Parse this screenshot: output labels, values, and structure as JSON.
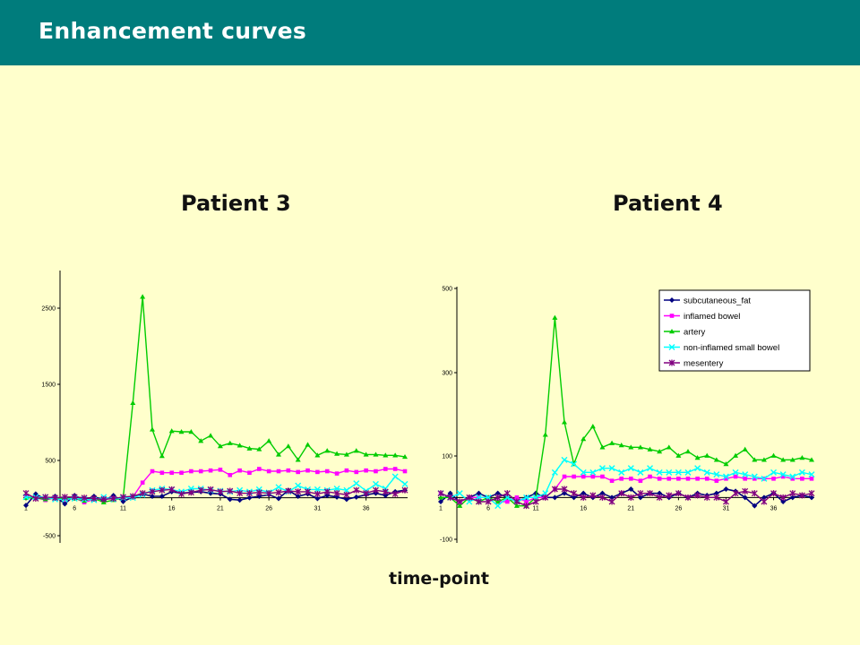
{
  "header": {
    "title": "Enhancement curves"
  },
  "xlabel": "time-point",
  "chart_data": [
    {
      "type": "line",
      "title": "Patient 3",
      "x": [
        1,
        2,
        3,
        4,
        5,
        6,
        7,
        8,
        9,
        10,
        11,
        12,
        13,
        14,
        15,
        16,
        17,
        18,
        19,
        20,
        21,
        22,
        23,
        24,
        25,
        26,
        27,
        28,
        29,
        30,
        31,
        32,
        33,
        34,
        35,
        36,
        37,
        38,
        39,
        40
      ],
      "x_ticks": [
        "1",
        "6",
        "11",
        "16",
        "21",
        "26",
        "31",
        "36"
      ],
      "ylim": [
        -500,
        3000
      ],
      "y_ticks": [
        "-500",
        "500",
        "1500",
        "2500"
      ],
      "series": [
        {
          "name": "subcutaneous_fat",
          "color": "#000080",
          "marker": "diamond",
          "values": [
            -100,
            50,
            -20,
            20,
            -80,
            30,
            -30,
            20,
            -40,
            30,
            -50,
            10,
            50,
            20,
            20,
            80,
            60,
            70,
            80,
            60,
            50,
            -20,
            -30,
            0,
            20,
            40,
            -10,
            100,
            20,
            50,
            -10,
            30,
            10,
            -20,
            10,
            40,
            60,
            30,
            80,
            100
          ]
        },
        {
          "name": "inflamed bowel",
          "color": "#FF00FF",
          "marker": "square",
          "values": [
            20,
            0,
            -30,
            0,
            -20,
            0,
            -60,
            -20,
            0,
            -10,
            0,
            10,
            200,
            350,
            330,
            330,
            330,
            350,
            350,
            360,
            370,
            300,
            360,
            330,
            380,
            350,
            350,
            360,
            340,
            360,
            340,
            350,
            320,
            360,
            340,
            360,
            350,
            380,
            380,
            350
          ]
        },
        {
          "name": "artery",
          "color": "#00CC00",
          "marker": "triangle",
          "values": [
            0,
            0,
            -20,
            0,
            -10,
            -10,
            -40,
            -10,
            -60,
            -30,
            0,
            1250,
            2650,
            900,
            550,
            880,
            870,
            870,
            750,
            820,
            680,
            720,
            690,
            650,
            640,
            750,
            570,
            680,
            500,
            700,
            560,
            620,
            580,
            570,
            620,
            570,
            570,
            560,
            560,
            540
          ]
        },
        {
          "name": "non-inflamed small bowel",
          "color": "#00FFFF",
          "marker": "x",
          "values": [
            10,
            10,
            10,
            -20,
            -20,
            -10,
            -20,
            -30,
            10,
            -20,
            0,
            0,
            40,
            100,
            120,
            110,
            80,
            120,
            120,
            100,
            90,
            80,
            100,
            80,
            110,
            70,
            140,
            80,
            160,
            110,
            110,
            100,
            120,
            100,
            190,
            90,
            180,
            120,
            280,
            180
          ]
        },
        {
          "name": "mesentery",
          "color": "#800080",
          "marker": "asterisk",
          "values": [
            60,
            -10,
            10,
            0,
            10,
            10,
            0,
            -10,
            -20,
            -10,
            10,
            20,
            60,
            80,
            100,
            110,
            50,
            70,
            100,
            110,
            80,
            90,
            60,
            60,
            70,
            60,
            70,
            90,
            80,
            80,
            50,
            80,
            60,
            40,
            100,
            60,
            100,
            80,
            50,
            100
          ]
        }
      ]
    },
    {
      "type": "line",
      "title": "Patient 4",
      "x": [
        1,
        2,
        3,
        4,
        5,
        6,
        7,
        8,
        9,
        10,
        11,
        12,
        13,
        14,
        15,
        16,
        17,
        18,
        19,
        20,
        21,
        22,
        23,
        24,
        25,
        26,
        27,
        28,
        29,
        30,
        31,
        32,
        33,
        34,
        35,
        36,
        37,
        38,
        39,
        40
      ],
      "x_ticks": [
        "1",
        "6",
        "11",
        "16",
        "21",
        "26",
        "31",
        "36"
      ],
      "ylim": [
        -100,
        500
      ],
      "y_ticks": [
        "-100",
        "100",
        "300",
        "500"
      ],
      "legend_position": "top-right",
      "series": [
        {
          "name": "subcutaneous_fat",
          "color": "#000080",
          "marker": "diamond",
          "values": [
            -10,
            10,
            -10,
            0,
            10,
            0,
            10,
            0,
            -10,
            0,
            10,
            0,
            0,
            10,
            0,
            10,
            0,
            10,
            0,
            10,
            20,
            0,
            10,
            10,
            0,
            10,
            0,
            10,
            5,
            10,
            20,
            15,
            0,
            -20,
            0,
            10,
            -10,
            0,
            5,
            0
          ]
        },
        {
          "name": "inflamed bowel",
          "color": "#FF00FF",
          "marker": "square",
          "values": [
            10,
            0,
            -10,
            0,
            0,
            0,
            -10,
            -10,
            0,
            -10,
            0,
            0,
            20,
            50,
            50,
            50,
            50,
            50,
            40,
            45,
            45,
            40,
            50,
            45,
            45,
            45,
            45,
            45,
            45,
            40,
            45,
            50,
            45,
            45,
            45,
            45,
            50,
            45,
            45,
            45
          ]
        },
        {
          "name": "artery",
          "color": "#00CC00",
          "marker": "triangle",
          "values": [
            0,
            0,
            -20,
            0,
            -10,
            0,
            -10,
            0,
            -20,
            -20,
            0,
            150,
            430,
            180,
            80,
            140,
            170,
            120,
            130,
            125,
            120,
            120,
            115,
            110,
            120,
            100,
            110,
            95,
            100,
            90,
            80,
            100,
            115,
            90,
            90,
            100,
            90,
            90,
            95,
            90
          ]
        },
        {
          "name": "non-inflamed small bowel",
          "color": "#00FFFF",
          "marker": "x",
          "values": [
            10,
            0,
            10,
            -10,
            0,
            0,
            -20,
            0,
            -10,
            0,
            0,
            10,
            60,
            90,
            80,
            60,
            60,
            70,
            70,
            60,
            70,
            60,
            70,
            60,
            60,
            60,
            60,
            70,
            60,
            55,
            50,
            60,
            55,
            50,
            45,
            60,
            55,
            50,
            60,
            55
          ]
        },
        {
          "name": "mesentery",
          "color": "#800080",
          "marker": "asterisk",
          "values": [
            10,
            0,
            -10,
            0,
            -10,
            -10,
            0,
            10,
            -10,
            -20,
            -10,
            0,
            20,
            20,
            10,
            0,
            5,
            0,
            -10,
            10,
            0,
            10,
            10,
            0,
            5,
            10,
            0,
            5,
            0,
            0,
            -10,
            10,
            15,
            10,
            -10,
            10,
            0,
            10,
            5,
            10
          ]
        }
      ]
    }
  ]
}
